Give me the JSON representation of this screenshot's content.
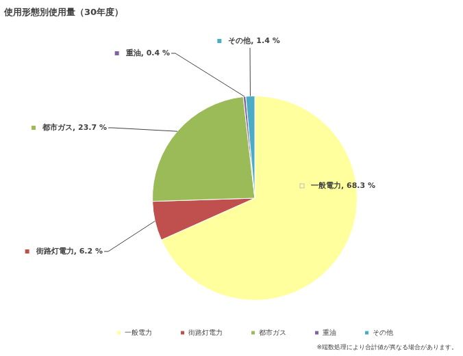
{
  "chart_data": {
    "type": "pie",
    "title": "使用形態別使用量（30年度）",
    "categories": [
      "一般電力",
      "街路灯電力",
      "都市ガス",
      "重油",
      "その他"
    ],
    "values": [
      68.3,
      6.2,
      23.7,
      0.4,
      1.4
    ],
    "value_labels": [
      "一般電力, 68.3 %",
      "街路灯電力, 6.2 %",
      "都市ガス, 23.7 %",
      "重油, 0.4 %",
      "その他, 1.4 %"
    ],
    "colors": [
      "#ffff9e",
      "#c0504d",
      "#9bbb59",
      "#8064a2",
      "#4bacc6"
    ],
    "data_labels": true,
    "legend": "bottom",
    "note": "※端数処理により合計値が異なる場合があります。"
  }
}
